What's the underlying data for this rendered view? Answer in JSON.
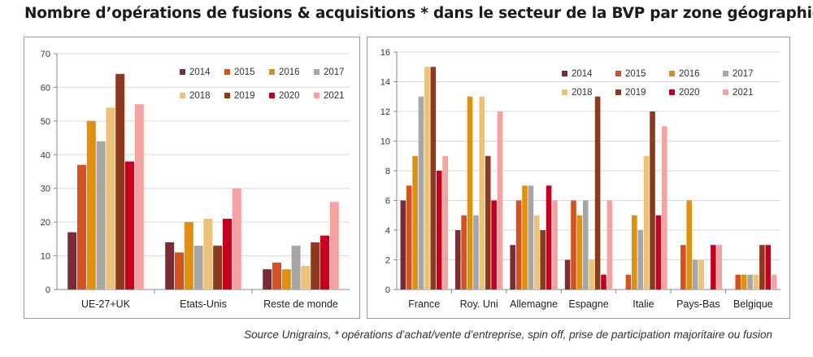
{
  "title": "Nombre d’opérations de fusions & acquisitions * dans le secteur de la BVP par zone géographique",
  "source": "Source Unigrains, * opérations d’achat/vente d’entreprise, spin off, prise de participation majoritaire ou fusion",
  "colors": [
    "#7b2c35",
    "#d4521f",
    "#e0900e",
    "#a6a6a6",
    "#ecc178",
    "#8b3a1d",
    "#c5001e",
    "#f4a2a2"
  ],
  "chart_data": [
    {
      "type": "bar",
      "title": "",
      "xlabel": "",
      "ylabel": "",
      "ylim": [
        0,
        70
      ],
      "yticks": [
        "0",
        "10",
        "20",
        "30",
        "40",
        "50",
        "60",
        "70"
      ],
      "grid": true,
      "legend_position": "top-right",
      "categories": [
        "UE-27+UK",
        "Etats-Unis",
        "Reste de monde"
      ],
      "series": [
        {
          "name": "2014",
          "values": [
            17,
            14,
            6
          ]
        },
        {
          "name": "2015",
          "values": [
            37,
            11,
            8
          ]
        },
        {
          "name": "2016",
          "values": [
            50,
            20,
            6
          ]
        },
        {
          "name": "2017",
          "values": [
            44,
            13,
            13
          ]
        },
        {
          "name": "2018",
          "values": [
            54,
            21,
            7
          ]
        },
        {
          "name": "2019",
          "values": [
            64,
            13,
            14
          ]
        },
        {
          "name": "2020",
          "values": [
            38,
            21,
            16
          ]
        },
        {
          "name": "2021",
          "values": [
            55,
            30,
            26
          ]
        }
      ]
    },
    {
      "type": "bar",
      "title": "",
      "xlabel": "",
      "ylabel": "",
      "ylim": [
        0,
        16
      ],
      "yticks": [
        "0",
        "2",
        "4",
        "6",
        "8",
        "10",
        "12",
        "14",
        "16"
      ],
      "grid": true,
      "legend_position": "top-right",
      "categories": [
        "France",
        "Roy. Uni",
        "Allemagne",
        "Espagne",
        "Italie",
        "Pays-Bas",
        "Belgique"
      ],
      "series": [
        {
          "name": "2014",
          "values": [
            6,
            4,
            3,
            2,
            0,
            0,
            0
          ]
        },
        {
          "name": "2015",
          "values": [
            7,
            5,
            6,
            6,
            1,
            3,
            1
          ]
        },
        {
          "name": "2016",
          "values": [
            9,
            13,
            7,
            5,
            5,
            6,
            1
          ]
        },
        {
          "name": "2017",
          "values": [
            13,
            5,
            7,
            6,
            4,
            2,
            1
          ]
        },
        {
          "name": "2018",
          "values": [
            15,
            13,
            5,
            2,
            9,
            2,
            1
          ]
        },
        {
          "name": "2019",
          "values": [
            15,
            9,
            4,
            13,
            12,
            0,
            3
          ]
        },
        {
          "name": "2020",
          "values": [
            8,
            6,
            7,
            1,
            5,
            3,
            3
          ]
        },
        {
          "name": "2021",
          "values": [
            9,
            12,
            6,
            6,
            11,
            3,
            1
          ]
        }
      ]
    }
  ]
}
